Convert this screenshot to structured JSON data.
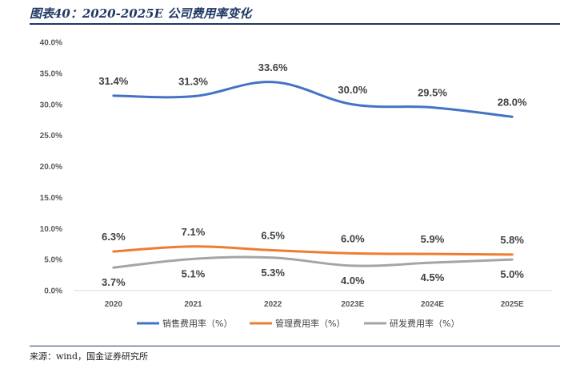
{
  "title": "图表40：2020-2025E 公司费用率变化",
  "source": "来源：wind，国金证券研究所",
  "chart_data": {
    "type": "line",
    "categories": [
      "2020",
      "2021",
      "2022",
      "2023E",
      "2024E",
      "2025E"
    ],
    "ylim": [
      0,
      40
    ],
    "yticks": [
      "0.0%",
      "5.0%",
      "10.0%",
      "15.0%",
      "20.0%",
      "25.0%",
      "30.0%",
      "35.0%",
      "40.0%"
    ],
    "grid": false,
    "legend_position": "bottom",
    "series": [
      {
        "name": "销售费用率（%）",
        "values": [
          31.4,
          31.3,
          33.6,
          30.0,
          29.5,
          28.0
        ],
        "labels": [
          "31.4%",
          "31.3%",
          "33.6%",
          "30.0%",
          "29.5%",
          "28.0%"
        ],
        "color": "#4472c4",
        "label_pos": "above"
      },
      {
        "name": "管理费用率（%）",
        "values": [
          6.3,
          7.1,
          6.5,
          6.0,
          5.9,
          5.8
        ],
        "labels": [
          "6.3%",
          "7.1%",
          "6.5%",
          "6.0%",
          "5.9%",
          "5.8%"
        ],
        "color": "#ed7d31",
        "label_pos": "above"
      },
      {
        "name": "研发费用率（%）",
        "values": [
          3.7,
          5.1,
          5.3,
          4.0,
          4.5,
          5.0
        ],
        "labels": [
          "3.7%",
          "5.1%",
          "5.3%",
          "4.0%",
          "4.5%",
          "5.0%"
        ],
        "color": "#a5a5a5",
        "label_pos": "below"
      }
    ]
  }
}
